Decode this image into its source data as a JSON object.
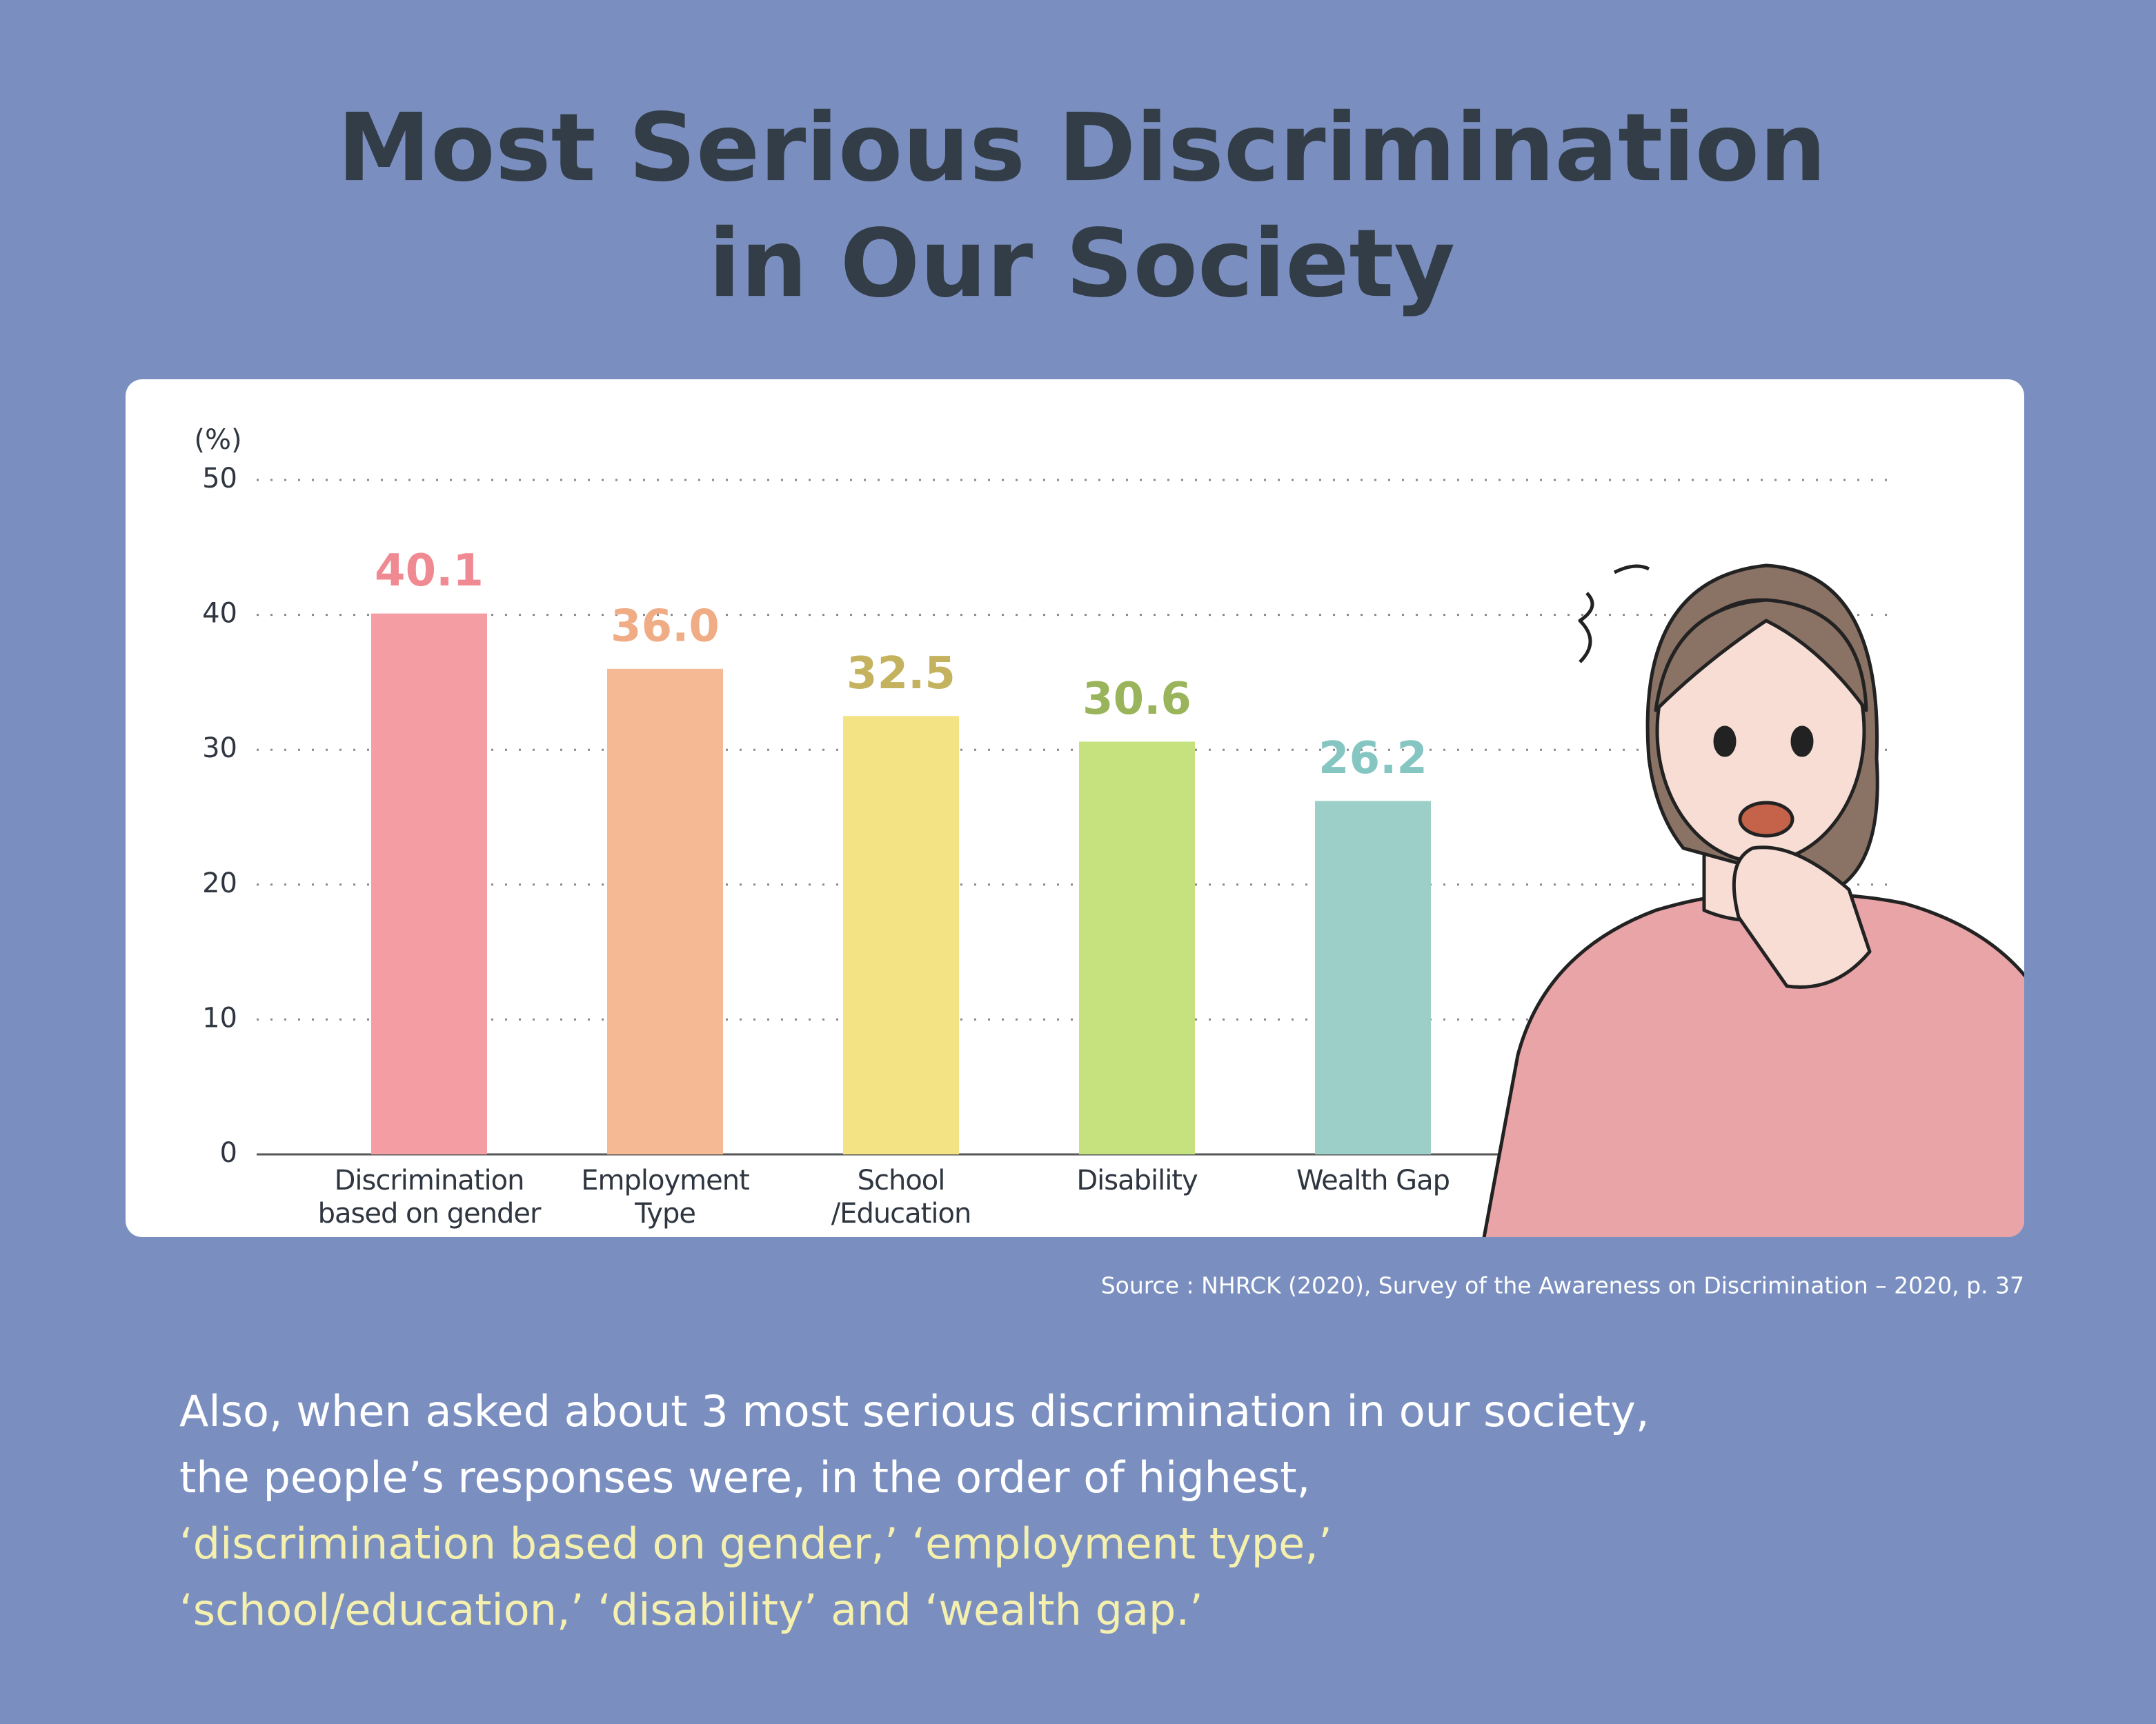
{
  "chart_data": {
    "type": "bar",
    "title": [
      "Most Serious Discrimination",
      "in Our Society"
    ],
    "y_label": "(%)",
    "categories": [
      "Discrimination\nbased on gender",
      "Employment Type",
      "School\n/Education",
      "Disability",
      "Wealth Gap"
    ],
    "values": [
      40.1,
      36.0,
      32.5,
      30.6,
      26.2
    ],
    "value_labels": [
      "40.1",
      "36.0",
      "32.5",
      "30.6",
      "26.2"
    ],
    "colors": [
      "#f49ea4",
      "#f5b994",
      "#f3e384",
      "#c5e27e",
      "#9ccfc7"
    ],
    "label_colors": [
      "#ef8a92",
      "#f0ac84",
      "#c4b25e",
      "#99b45a",
      "#86c6c2"
    ],
    "ylim": [
      0,
      50
    ],
    "yticks": [
      0,
      10,
      20,
      30,
      40,
      50
    ],
    "grid": true,
    "source": "Source : NHRCK (2020), Survey of the Awareness on Discrimination – 2020, p. 37",
    "description": [
      "Also, when asked about 3 most serious discrimination in our society,",
      "the people’s responses were, in the order of highest,"
    ],
    "highlight": [
      "‘discrimination based on gender,’ ‘employment type,’",
      "‘school/education,’ ‘disability’ and ‘wealth gap.’"
    ]
  }
}
